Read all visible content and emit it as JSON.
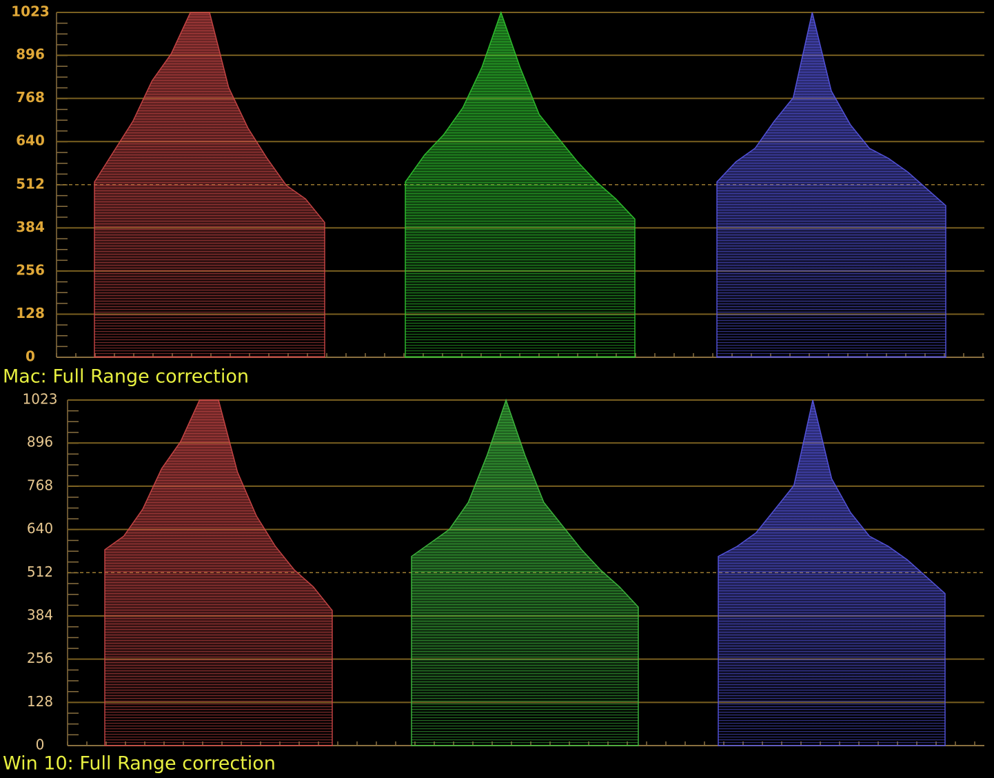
{
  "chart_data": [
    {
      "type": "waveform",
      "title": "Mac: Full Range correction",
      "ylim": [
        0,
        1023
      ],
      "yticks": [
        0,
        128,
        256,
        384,
        512,
        640,
        768,
        896,
        1023
      ],
      "grid": true,
      "dashed_midline": true,
      "series": [
        {
          "color": "#d04848",
          "values": [
            520,
            610,
            700,
            820,
            900,
            1023,
            1023,
            800,
            680,
            590,
            510,
            470,
            400
          ]
        },
        {
          "color": "#30c830",
          "values": [
            520,
            600,
            660,
            740,
            860,
            1023,
            860,
            720,
            650,
            580,
            520,
            470,
            410
          ]
        },
        {
          "color": "#5858e8",
          "values": [
            520,
            580,
            620,
            700,
            770,
            1023,
            790,
            690,
            620,
            590,
            550,
            500,
            450
          ]
        }
      ]
    },
    {
      "type": "waveform",
      "title": "Win 10: Full Range correction",
      "ylim": [
        0,
        1023
      ],
      "yticks": [
        0,
        128,
        256,
        384,
        512,
        640,
        768,
        896,
        1023
      ],
      "grid": true,
      "dashed_midline": true,
      "series": [
        {
          "color": "#d04848",
          "values": [
            580,
            620,
            700,
            820,
            900,
            1023,
            1023,
            810,
            680,
            590,
            520,
            470,
            400
          ]
        },
        {
          "color": "#40c040",
          "values": [
            560,
            600,
            640,
            720,
            860,
            1023,
            860,
            720,
            650,
            580,
            520,
            470,
            410
          ]
        },
        {
          "color": "#5858e8",
          "values": [
            560,
            590,
            630,
            700,
            770,
            1023,
            790,
            690,
            620,
            590,
            550,
            500,
            450
          ]
        }
      ]
    }
  ]
}
